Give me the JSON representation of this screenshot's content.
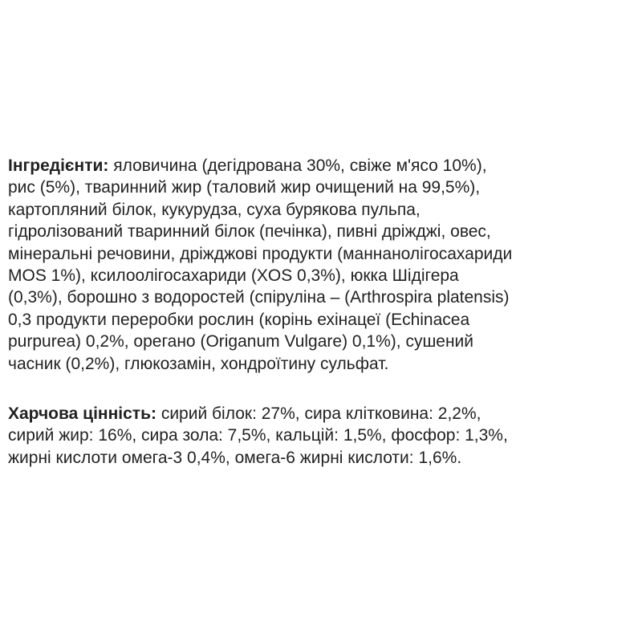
{
  "ingredients": {
    "label": "Інгредієнти:",
    "lines": [
      " яловичина (дегідрована 30%, свіже м'ясо 10%),",
      "рис (5%), тваринний жир (таловий жир очищений на 99,5%),",
      "картопляний білок, кукурудза, суха бурякова пульпа,",
      "гідролізований тваринний білок (печінка), пивні дріжджі, овес,",
      "мінеральні речовини, дріжджові продукти (маннанолігосахариди",
      "MOS 1%), ксилоолігосахариди (XOS 0,3%), юкка Шідігера",
      "(0,3%), борошно з водоростей (спіруліна – (Arthrospira platensis)",
      "0,3 продукти переробки рослин (корінь ехінацеї (Echinacea",
      "purpurea) 0,2%, орегано (Origanum Vulgare) 0,1%), сушений",
      "часник (0,2%), глюкозамін, хондроїтину сульфат."
    ]
  },
  "nutrition": {
    "label": "Харчова цінність:",
    "lines": [
      " сирий білок: 27%, сира клітковина: 2,2%,",
      "сирий жир: 16%, сира зола: 7,5%, кальцій: 1,5%, фосфор: 1,3%,",
      "жирні кислоти омега-3 0,4%, омега-6 жирні кислоти: 1,6%."
    ]
  }
}
